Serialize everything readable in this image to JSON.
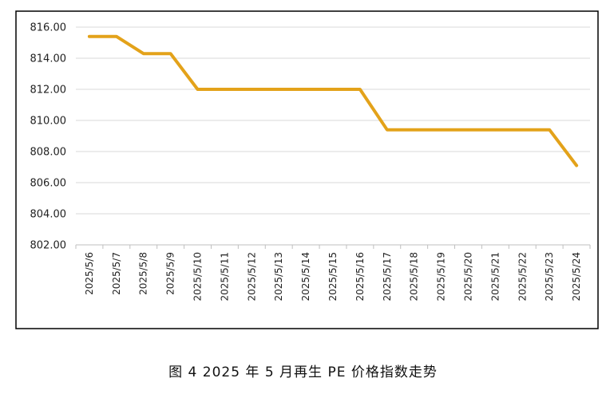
{
  "caption": "图 4  2025 年 5 月再生 PE 价格指数走势",
  "chart_data": {
    "type": "line",
    "categories": [
      "2025/5/6",
      "2025/5/7",
      "2025/5/8",
      "2025/5/9",
      "2025/5/10",
      "2025/5/11",
      "2025/5/12",
      "2025/5/13",
      "2025/5/14",
      "2025/5/15",
      "2025/5/16",
      "2025/5/17",
      "2025/5/18",
      "2025/5/19",
      "2025/5/20",
      "2025/5/21",
      "2025/5/22",
      "2025/5/23",
      "2025/5/24"
    ],
    "series": [
      {
        "values": [
          815.4,
          815.4,
          814.3,
          814.3,
          812.0,
          812.0,
          812.0,
          812.0,
          812.0,
          812.0,
          812.0,
          809.4,
          809.4,
          809.4,
          809.4,
          809.4,
          809.4,
          809.4,
          807.1
        ],
        "color": "#E3A21A"
      }
    ],
    "yticks": [
      "802.00",
      "804.00",
      "806.00",
      "808.00",
      "810.00",
      "812.00",
      "814.00",
      "816.00"
    ],
    "ylim": [
      802,
      816
    ],
    "grid": true,
    "title": "",
    "xlabel": "",
    "ylabel": ""
  }
}
